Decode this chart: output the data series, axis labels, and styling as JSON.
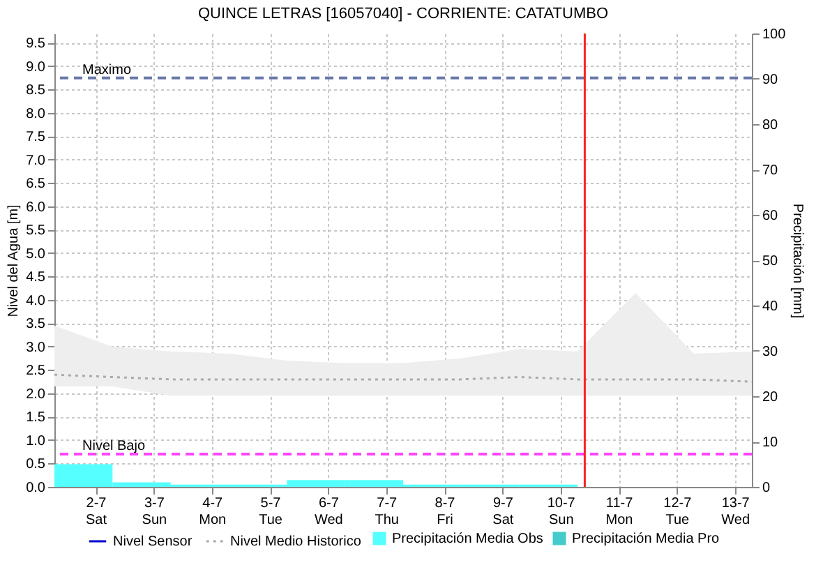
{
  "chart_data": {
    "type": "line",
    "title": "QUINCE LETRAS [16057040] - CORRIENTE: CATATUMBO",
    "ylabel": "Nivel del Agua [m]",
    "y2label": "Precipitación [mm]",
    "x": [
      "--07-01T07:00",
      "--07-02T07:00",
      "--07-03T07:00",
      "--07-04T07:00",
      "--07-05T07:00",
      "--07-06T07:00",
      "--07-07T07:00",
      "--07-08T07:00",
      "--07-09T07:00",
      "--07-10T07:00",
      "--07-11T07:00",
      "--07-12T07:00",
      "--07-13T07:00"
    ],
    "series": [
      {
        "name": "Nivel Sensor",
        "color": "#0000cc",
        "line_style": "solid",
        "values": [
          null,
          null,
          null,
          null,
          null,
          null,
          null,
          null,
          null,
          null,
          null,
          null,
          null
        ]
      },
      {
        "name": "Nivel Medio Historico",
        "color": "#aaaaaa",
        "line_style": "dotted",
        "values": [
          2.4,
          2.35,
          2.3,
          2.3,
          2.3,
          2.3,
          2.3,
          2.3,
          2.35,
          2.3,
          2.3,
          2.3,
          2.25
        ],
        "lower": [
          2.15,
          2.15,
          1.95,
          1.95,
          1.95,
          1.95,
          1.95,
          1.95,
          1.95,
          1.95,
          1.95,
          1.95,
          1.95
        ],
        "upper": [
          3.45,
          3.0,
          2.9,
          2.85,
          2.7,
          2.65,
          2.65,
          2.75,
          2.95,
          2.9,
          4.15,
          2.85,
          2.9
        ]
      },
      {
        "name": "Precipitación Media Obs",
        "type": "bar",
        "axis": "y2",
        "color": "#55ffff",
        "x": [
          "--07-01T07:00",
          "--07-02T07:00",
          "--07-03T07:00",
          "--07-04T07:00",
          "--07-05T07:00",
          "--07-06T07:00",
          "--07-07T07:00",
          "--07-08T07:00",
          "--07-09T07:00"
        ],
        "values": [
          5,
          1,
          0.5,
          0.5,
          1.5,
          1.5,
          0.5,
          0.5,
          0.5
        ]
      },
      {
        "name": "Precipitación Media Pro",
        "type": "bar",
        "axis": "y2",
        "color": "#44cccc",
        "values": [
          null,
          null,
          null,
          null,
          null,
          null,
          null,
          null,
          null,
          null,
          null,
          null,
          null
        ]
      }
    ],
    "xlim": [
      "--07-01T07:00",
      "--07-13T07:00"
    ],
    "xticks": [
      {
        "value": "--07-02",
        "label": "2-7\nSat"
      },
      {
        "value": "--07-03",
        "label": "3-7\nSun"
      },
      {
        "value": "--07-04",
        "label": "4-7\nMon"
      },
      {
        "value": "--07-05",
        "label": "5-7\nTue"
      },
      {
        "value": "--07-06",
        "label": "6-7\nWed"
      },
      {
        "value": "--07-07",
        "label": "7-7\nThu"
      },
      {
        "value": "--07-08",
        "label": "8-7\nFri"
      },
      {
        "value": "--07-09",
        "label": "9-7\nSat"
      },
      {
        "value": "--07-10",
        "label": "10-7\nSun"
      },
      {
        "value": "--07-11",
        "label": "11-7\nMon"
      },
      {
        "value": "--07-12",
        "label": "12-7\nTue"
      },
      {
        "value": "--07-13",
        "label": "13-7\nWed"
      }
    ],
    "ylim": [
      0,
      9.7
    ],
    "yticks": [
      {
        "value": 0,
        "label": "0.0"
      },
      {
        "value": 0.5,
        "label": "0.5"
      },
      {
        "value": 1,
        "label": "1.0"
      },
      {
        "value": 1.5,
        "label": "1.5"
      },
      {
        "value": 2,
        "label": "2.0"
      },
      {
        "value": 2.5,
        "label": "2.5"
      },
      {
        "value": 3,
        "label": "3.0"
      },
      {
        "value": 3.5,
        "label": "3.5"
      },
      {
        "value": 4,
        "label": "4.0"
      },
      {
        "value": 4.5,
        "label": "4.5"
      },
      {
        "value": 5,
        "label": "5.0"
      },
      {
        "value": 5.5,
        "label": "5.5"
      },
      {
        "value": 6,
        "label": "6.0"
      },
      {
        "value": 6.5,
        "label": "6.5"
      },
      {
        "value": 7,
        "label": "7.0"
      },
      {
        "value": 7.5,
        "label": "7.5"
      },
      {
        "value": 8,
        "label": "8.0"
      },
      {
        "value": 8.5,
        "label": "8.5"
      },
      {
        "value": 9,
        "label": "9.0"
      },
      {
        "value": 9.5,
        "label": "9.5"
      }
    ],
    "y2lim": [
      0,
      100
    ],
    "y2ticks": [
      0,
      10,
      20,
      30,
      40,
      50,
      60,
      70,
      80,
      90,
      100
    ],
    "ref_lines": [
      {
        "axis": "y",
        "value": 8.75,
        "label": "Maximo",
        "color": "#6677aa",
        "line_style": "dashed"
      },
      {
        "axis": "y",
        "value": 0.7,
        "label": "Nivel Bajo",
        "color": "#ff44ff",
        "line_style": "dashed"
      },
      {
        "axis": "x",
        "value": "--07-10T10:00",
        "label": null,
        "color": "#ff2222",
        "line_style": "solid"
      }
    ],
    "grid": true,
    "legend": "bottom"
  }
}
